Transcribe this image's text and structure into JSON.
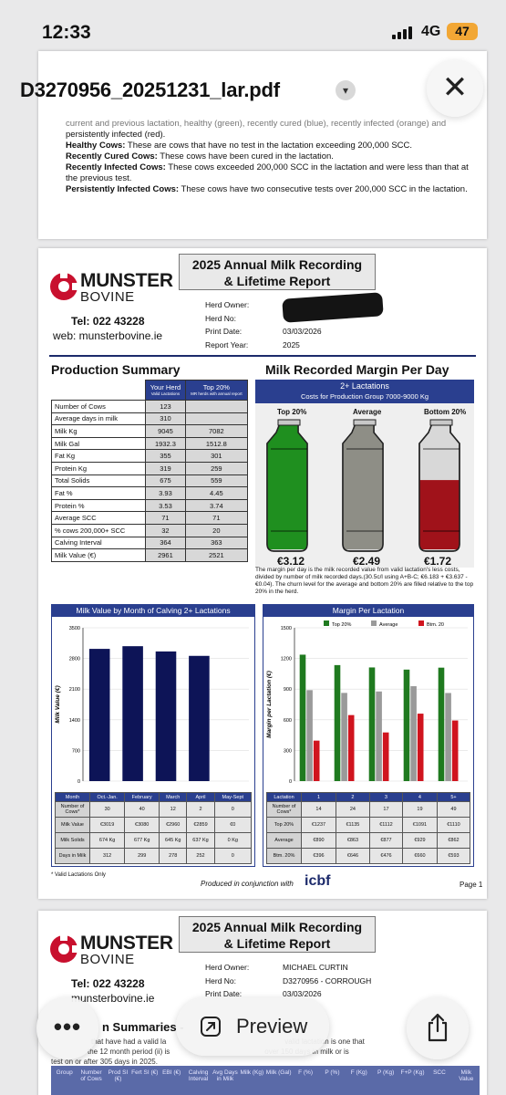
{
  "status_bar": {
    "time": "12:33",
    "network": "4G",
    "battery": "47"
  },
  "viewer": {
    "file_name": "D3270956_20251231_lar.pdf",
    "preview_label": "Preview",
    "more_label": "•••"
  },
  "page0": {
    "lines": [
      "current and previous lactation, healthy (green), recently cured (blue), recently infected (orange) and",
      "persistently infected (red)."
    ],
    "defs": [
      {
        "term": "Healthy Cows:",
        "text": " These are cows that have no test in the lactation exceeding 200,000 SCC."
      },
      {
        "term": "Recently Cured Cows:",
        "text": " These cows have been cured in the lactation."
      },
      {
        "term": "Recently Infected Cows:",
        "text": " These cows exceeded 200,000 SCC in the lactation and were less than that at the previous test."
      },
      {
        "term": "Persistently Infected Cows:",
        "text": " These cows have two consecutive tests over 200,000 SCC in the lactation."
      }
    ]
  },
  "report": {
    "title_line1": "2025 Annual Milk Recording",
    "title_line2": "& Lifetime Report",
    "brand_line1": "MUNSTER",
    "brand_line2": "BOVINE",
    "tel": "Tel: 022 43228",
    "web": "web: munsterbovine.ie",
    "herd_labels": [
      "Herd Owner:",
      "Herd No:",
      "Print Date:",
      "Report Year:"
    ],
    "print_date": "03/03/2026",
    "report_year": "2025",
    "production_title": "Production Summary",
    "margin_title": "Milk Recorded Margin Per Day",
    "col_your_herd": "Your Herd",
    "col_your_herd_sub": "Valid Lactations",
    "col_top20": "Top 20%",
    "col_top20_sub": "MR herds with annual report",
    "rows": [
      {
        "label": "Number of Cows",
        "herd": "123",
        "top": ""
      },
      {
        "label": "Average days in milk",
        "herd": "310",
        "top": ""
      },
      {
        "label": "Milk Kg",
        "herd": "9045",
        "top": "7082"
      },
      {
        "label": "Milk Gal",
        "herd": "1932.3",
        "top": "1512.8"
      },
      {
        "label": "Fat Kg",
        "herd": "355",
        "top": "301"
      },
      {
        "label": "Protein Kg",
        "herd": "319",
        "top": "259"
      },
      {
        "label": "Total Solids",
        "herd": "675",
        "top": "559"
      },
      {
        "label": "Fat %",
        "herd": "3.93",
        "top": "4.45"
      },
      {
        "label": "Protein %",
        "herd": "3.53",
        "top": "3.74"
      },
      {
        "label": "Average SCC",
        "herd": "71",
        "top": "71"
      },
      {
        "label": "% cows 200,000+ SCC",
        "herd": "32",
        "top": "20"
      },
      {
        "label": "Calving Interval",
        "herd": "364",
        "top": "363"
      },
      {
        "label": "Milk Value (€)",
        "herd": "2961",
        "top": "2521"
      }
    ],
    "lactations_header": "2+ Lactations",
    "lactations_sub": "Costs for Production Group 7000-9000 Kg",
    "cans": [
      {
        "label": "Top 20%",
        "value": "€3.12",
        "fill": 1.0,
        "color": "#1f8f1f"
      },
      {
        "label": "Average",
        "value": "€2.49",
        "fill": 1.0,
        "color": "#8e8e86"
      },
      {
        "label": "Bottom 20%",
        "value": "€1.72",
        "fill": 0.55,
        "color": "#a0121a"
      }
    ],
    "margin_note": "The margin per day is the milk recorded value from valid lactation's less costs, divided by number of milk recorded days.(30.5c/l using A+B-C; €6.183 + €3.637 - €0.04). The churn level for the average and bottom 20% are filled relative to the top 20% in the herd.",
    "footnote": "* Valid Lactations Only",
    "produced": "Produced in conjunction with",
    "icbf": "icbf",
    "page_label": "Page 1"
  },
  "chart_data": [
    {
      "type": "bar",
      "title": "Milk Value by Month of Calving 2+ Lactations",
      "ylabel": "Milk Value (€)",
      "ylim": [
        0,
        3500
      ],
      "yticks": [
        "3500",
        "2800",
        "2100",
        "1400",
        "700",
        "0"
      ],
      "categories": [
        "Oct.-Jan.",
        "February",
        "March",
        "April",
        "May-Sept"
      ],
      "values": [
        3019,
        3080,
        2960,
        2859,
        0
      ],
      "color": "#0d1457",
      "table": {
        "header": "Month",
        "rows": [
          {
            "label": "Number of Cows*",
            "values": [
              "30",
              "40",
              "12",
              "2",
              "0"
            ]
          },
          {
            "label": "Milk Value",
            "values": [
              "€3019",
              "€3080",
              "€2960",
              "€2859",
              "€0"
            ]
          },
          {
            "label": "Milk Solids",
            "values": [
              "674 Kg",
              "677 Kg",
              "645 Kg",
              "637 Kg",
              "0 Kg"
            ]
          },
          {
            "label": "Days in Milk",
            "values": [
              "312",
              "299",
              "278",
              "252",
              "0"
            ]
          }
        ]
      }
    },
    {
      "type": "bar",
      "title": "Margin Per Lactation",
      "ylabel": "Margin per Lactation (€)",
      "ylim": [
        0,
        1500
      ],
      "yticks": [
        "1500",
        "1200",
        "900",
        "600",
        "300",
        "0"
      ],
      "categories": [
        "1",
        "2",
        "3",
        "4",
        "5+"
      ],
      "series": [
        {
          "name": "Top 20%",
          "color": "#1f7a1f",
          "values": [
            1237,
            1135,
            1112,
            1091,
            1110
          ]
        },
        {
          "name": "Average",
          "color": "#9a9a9a",
          "values": [
            890,
            863,
            877,
            929,
            862
          ]
        },
        {
          "name": "Btm. 20",
          "color": "#d0141e",
          "values": [
            396,
            646,
            476,
            660,
            593
          ]
        }
      ],
      "table": {
        "header": "Lactation",
        "rows": [
          {
            "label": "Number of Cows*",
            "values": [
              "14",
              "24",
              "17",
              "19",
              "49"
            ]
          },
          {
            "label": "Top 20%",
            "values": [
              "€1237",
              "€1135",
              "€1112",
              "€1091",
              "€1110"
            ]
          },
          {
            "label": "Average",
            "values": [
              "€890",
              "€863",
              "€877",
              "€929",
              "€862"
            ]
          },
          {
            "label": "Btm. 20%",
            "values": [
              "€396",
              "€646",
              "€476",
              "€660",
              "€593"
            ]
          }
        ]
      }
    }
  ],
  "page2": {
    "title_line1": "2025 Annual Milk Recording",
    "title_line2": "& Lifetime Report",
    "brand_line1": "MUNSTER",
    "brand_line2": "BOVINE",
    "tel": "Tel: 022 43228",
    "web": "munsterbovine.ie",
    "herd_labels": [
      "Herd Owner:",
      "Herd No:",
      "Print Date:"
    ],
    "herd_owner": "MICHAEL CURTIN",
    "herd_no": "D3270956 - CORROUGH",
    "print_date": "03/03/2026",
    "summary_title": "n Summaries -",
    "text_line1": "that have had a valid la",
    "text_line2": "valid lactation is one that",
    "text_line3": "the 12 month period (ii) is",
    "text_line4": "over 150 days in milk or is",
    "text_line5": "test on or after 305 days in 2025.",
    "columns": [
      "Group",
      "Number of Cows",
      "Prod SI (€)",
      "Fert SI (€)",
      "EBI (€)",
      "Calving Interval",
      "Avg Days in Milk",
      "Milk (Kg)",
      "Milk (Gal)",
      "F (%)",
      "P (%)",
      "F (Kg)",
      "P (Kg)",
      "F+P (Kg)",
      "SCC",
      "Milk Value"
    ]
  }
}
